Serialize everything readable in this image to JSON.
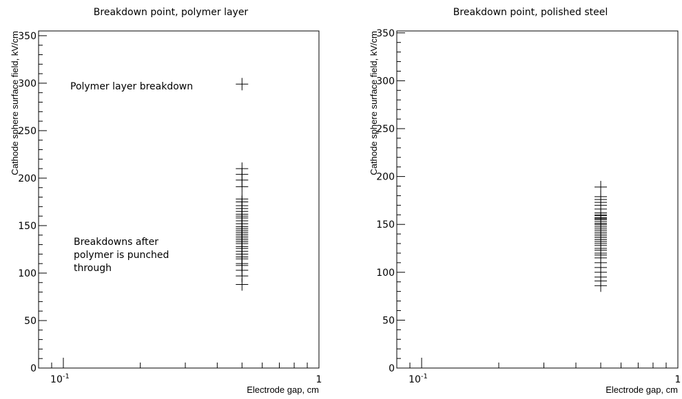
{
  "chart_data": [
    {
      "type": "scatter",
      "marker": "cross",
      "title": "Breakdown point, polymer layer",
      "xlabel": "Electrode gap, cm",
      "ylabel": "Cathode sphere surface field, kV/cm",
      "x_scale": "log",
      "xlim": [
        0.08,
        1.0
      ],
      "ylim": [
        0,
        355
      ],
      "x_ticks": [
        {
          "value": 0.1,
          "label": "10",
          "exp": "-1"
        },
        {
          "value": 1.0,
          "label": "1",
          "exp": ""
        }
      ],
      "y_ticks": [
        0,
        50,
        100,
        150,
        200,
        250,
        300,
        350
      ],
      "series": [
        {
          "x": [
            0.5
          ],
          "y": [
            299
          ]
        },
        {
          "x": [
            0.5,
            0.5,
            0.5,
            0.5,
            0.5,
            0.5,
            0.5,
            0.5,
            0.5,
            0.5,
            0.5,
            0.5,
            0.5,
            0.5,
            0.5,
            0.5,
            0.5,
            0.5,
            0.5,
            0.5,
            0.5,
            0.5,
            0.5,
            0.5,
            0.5,
            0.5,
            0.5,
            0.5,
            0.5,
            0.5,
            0.5,
            0.5,
            0.5,
            0.5,
            0.5
          ],
          "y": [
            88,
            97,
            103,
            108,
            110,
            115,
            117,
            120,
            123,
            126,
            128,
            131,
            133,
            135,
            137,
            139,
            141,
            143,
            145,
            147,
            149,
            152,
            155,
            158,
            160,
            162,
            165,
            168,
            171,
            175,
            178,
            191,
            198,
            204,
            210
          ]
        }
      ],
      "annotations": [
        {
          "text": "Polymer layer breakdown"
        },
        {
          "lines": [
            "Breakdowns after",
            "polymer is punched",
            "through"
          ]
        }
      ]
    },
    {
      "type": "scatter",
      "marker": "cross",
      "title": "Breakdown point, polished steel",
      "xlabel": "Electrode gap, cm",
      "ylabel": "Cathode sphere surface field, kV/cm",
      "x_scale": "log",
      "xlim": [
        0.08,
        1.0
      ],
      "ylim": [
        0,
        352
      ],
      "x_ticks": [
        {
          "value": 0.1,
          "label": "10",
          "exp": "-1"
        },
        {
          "value": 1.0,
          "label": "1",
          "exp": ""
        }
      ],
      "y_ticks": [
        0,
        50,
        100,
        150,
        200,
        250,
        300,
        350
      ],
      "series": [
        {
          "x": [
            0.5,
            0.5,
            0.5,
            0.5,
            0.5,
            0.5,
            0.5,
            0.5,
            0.5,
            0.5,
            0.5,
            0.5,
            0.5,
            0.5,
            0.5,
            0.5,
            0.5,
            0.5,
            0.5,
            0.5,
            0.5,
            0.5,
            0.5,
            0.5,
            0.5,
            0.5,
            0.5,
            0.5,
            0.5,
            0.5,
            0.5,
            0.5,
            0.5,
            0.5,
            0.5,
            0.5,
            0.5
          ],
          "y": [
            86,
            91,
            95,
            100,
            105,
            110,
            115,
            118,
            120,
            123,
            125,
            128,
            130,
            132,
            134,
            136,
            138,
            140,
            142,
            144,
            146,
            148,
            150,
            151,
            153,
            155,
            156,
            157,
            159,
            160,
            162,
            166,
            170,
            173,
            176,
            179,
            189
          ]
        }
      ],
      "annotations": []
    }
  ]
}
